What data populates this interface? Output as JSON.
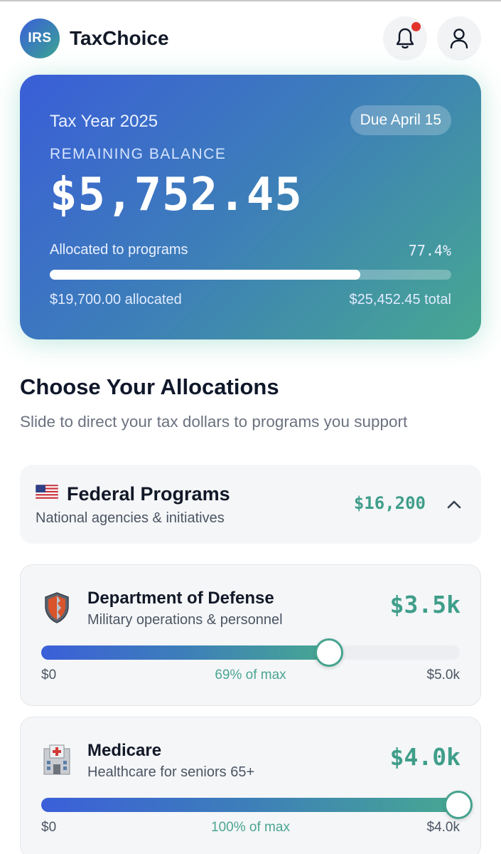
{
  "app": {
    "logo_text": "IRS",
    "title": "TaxChoice"
  },
  "header": {
    "notification_icon": "bell-icon",
    "profile_icon": "user-icon",
    "notification_dot_color": "#e2332e"
  },
  "balance": {
    "tax_year": "Tax Year 2025",
    "due_badge": "Due April 15",
    "label": "REMAINING BALANCE",
    "amount": "$5,752.45",
    "allocated_label": "Allocated to programs",
    "allocated_pct": "77.4%",
    "allocated_fraction": 0.774,
    "allocated_amount": "$19,700.00 allocated",
    "total_amount": "$25,452.45 total"
  },
  "allocations": {
    "title": "Choose Your Allocations",
    "subtitle": "Slide to direct your tax dollars to programs you support"
  },
  "group": {
    "flag_icon": "us-flag-icon",
    "title": "Federal Programs",
    "subtitle": "National agencies & initiatives",
    "total": "$16,200",
    "chevron_icon": "chevron-up-icon"
  },
  "programs": [
    {
      "icon": "shield-icon",
      "name": "Department of Defense",
      "description": "Military operations & personnel",
      "amount": "$3.5k",
      "min_label": "$0",
      "pct_label": "69% of max",
      "max_label": "$5.0k",
      "fraction": 0.69
    },
    {
      "icon": "hospital-icon",
      "name": "Medicare",
      "description": "Healthcare for seniors 65+",
      "amount": "$4.0k",
      "min_label": "$0",
      "pct_label": "100% of max",
      "max_label": "$4.0k",
      "fraction": 1.0
    }
  ],
  "colors": {
    "accent_teal": "#3f9e8a",
    "gradient_start": "#3b5fd9",
    "gradient_end": "#47a891"
  }
}
